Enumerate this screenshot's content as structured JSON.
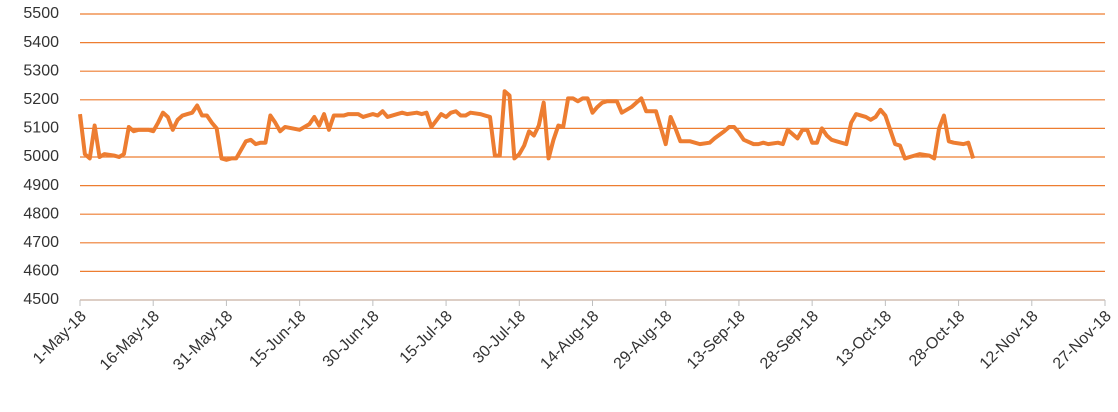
{
  "chart_data": {
    "type": "line",
    "x": [
      "2018-05-01",
      "2018-05-02",
      "2018-05-03",
      "2018-05-04",
      "2018-05-05",
      "2018-05-06",
      "2018-05-08",
      "2018-05-09",
      "2018-05-10",
      "2018-05-11",
      "2018-05-12",
      "2018-05-13",
      "2018-05-15",
      "2018-05-16",
      "2018-05-17",
      "2018-05-18",
      "2018-05-19",
      "2018-05-20",
      "2018-05-21",
      "2018-05-22",
      "2018-05-23",
      "2018-05-24",
      "2018-05-25",
      "2018-05-26",
      "2018-05-27",
      "2018-05-28",
      "2018-05-29",
      "2018-05-30",
      "2018-05-31",
      "2018-06-01",
      "2018-06-02",
      "2018-06-04",
      "2018-06-05",
      "2018-06-06",
      "2018-06-07",
      "2018-06-08",
      "2018-06-09",
      "2018-06-10",
      "2018-06-11",
      "2018-06-12",
      "2018-06-15",
      "2018-06-17",
      "2018-06-18",
      "2018-06-19",
      "2018-06-20",
      "2018-06-21",
      "2018-06-22",
      "2018-06-24",
      "2018-06-25",
      "2018-06-27",
      "2018-06-28",
      "2018-06-30",
      "2018-07-01",
      "2018-07-02",
      "2018-07-03",
      "2018-07-05",
      "2018-07-06",
      "2018-07-07",
      "2018-07-09",
      "2018-07-10",
      "2018-07-11",
      "2018-07-12",
      "2018-07-14",
      "2018-07-15",
      "2018-07-16",
      "2018-07-17",
      "2018-07-18",
      "2018-07-19",
      "2018-07-20",
      "2018-07-22",
      "2018-07-23",
      "2018-07-24",
      "2018-07-25",
      "2018-07-26",
      "2018-07-27",
      "2018-07-28",
      "2018-07-29",
      "2018-07-30",
      "2018-07-31",
      "2018-08-01",
      "2018-08-02",
      "2018-08-03",
      "2018-08-04",
      "2018-08-05",
      "2018-08-06",
      "2018-08-07",
      "2018-08-08",
      "2018-08-09",
      "2018-08-10",
      "2018-08-11",
      "2018-08-12",
      "2018-08-13",
      "2018-08-14",
      "2018-08-15",
      "2018-08-16",
      "2018-08-17",
      "2018-08-19",
      "2018-08-20",
      "2018-08-22",
      "2018-08-23",
      "2018-08-24",
      "2018-08-25",
      "2018-08-27",
      "2018-08-29",
      "2018-08-30",
      "2018-08-31",
      "2018-09-01",
      "2018-09-03",
      "2018-09-05",
      "2018-09-07",
      "2018-09-08",
      "2018-09-10",
      "2018-09-11",
      "2018-09-12",
      "2018-09-13",
      "2018-09-14",
      "2018-09-16",
      "2018-09-17",
      "2018-09-18",
      "2018-09-19",
      "2018-09-21",
      "2018-09-22",
      "2018-09-23",
      "2018-09-24",
      "2018-09-25",
      "2018-09-26",
      "2018-09-27",
      "2018-09-28",
      "2018-09-29",
      "2018-09-30",
      "2018-10-01",
      "2018-10-02",
      "2018-10-03",
      "2018-10-05",
      "2018-10-06",
      "2018-10-07",
      "2018-10-09",
      "2018-10-10",
      "2018-10-11",
      "2018-10-12",
      "2018-10-13",
      "2018-10-14",
      "2018-10-15",
      "2018-10-16",
      "2018-10-17",
      "2018-10-18",
      "2018-10-20",
      "2018-10-22",
      "2018-10-23",
      "2018-10-24",
      "2018-10-25",
      "2018-10-26",
      "2018-10-27",
      "2018-10-29",
      "2018-10-30",
      "2018-10-31"
    ],
    "series": [
      {
        "color": "#ed7d31",
        "values": [
          5150,
          5010,
          4995,
          5110,
          5000,
          5010,
          5005,
          5000,
          5010,
          5105,
          5090,
          5095,
          5095,
          5090,
          5120,
          5155,
          5140,
          5095,
          5130,
          5145,
          5150,
          5155,
          5180,
          5145,
          5145,
          5120,
          5100,
          4995,
          4990,
          4995,
          4995,
          5055,
          5060,
          5045,
          5050,
          5050,
          5145,
          5120,
          5090,
          5105,
          5095,
          5115,
          5140,
          5110,
          5150,
          5095,
          5145,
          5145,
          5150,
          5150,
          5140,
          5150,
          5145,
          5160,
          5140,
          5150,
          5155,
          5150,
          5155,
          5150,
          5155,
          5105,
          5150,
          5140,
          5155,
          5160,
          5145,
          5145,
          5155,
          5150,
          5145,
          5140,
          5005,
          5005,
          5230,
          5215,
          4995,
          5010,
          5040,
          5090,
          5075,
          5110,
          5190,
          4995,
          5060,
          5110,
          5105,
          5205,
          5205,
          5195,
          5205,
          5205,
          5155,
          5175,
          5190,
          5195,
          5195,
          5155,
          5175,
          5190,
          5205,
          5160,
          5160,
          5045,
          5140,
          5100,
          5055,
          5055,
          5045,
          5050,
          5065,
          5090,
          5105,
          5105,
          5085,
          5060,
          5045,
          5045,
          5050,
          5045,
          5050,
          5045,
          5095,
          5080,
          5065,
          5095,
          5095,
          5050,
          5050,
          5100,
          5075,
          5060,
          5055,
          5045,
          5120,
          5150,
          5140,
          5130,
          5140,
          5165,
          5145,
          5095,
          5045,
          5040,
          4995,
          5000,
          5010,
          5005,
          4995,
          5100,
          5145,
          5055,
          5050,
          5045,
          5050,
          4995
        ]
      }
    ],
    "xlim": [
      "2018-05-01",
      "2018-11-27"
    ],
    "xticks": [
      {
        "value": "2018-05-01",
        "label": "1-May-18"
      },
      {
        "value": "2018-05-16",
        "label": "16-May-18"
      },
      {
        "value": "2018-05-31",
        "label": "31-May-18"
      },
      {
        "value": "2018-06-15",
        "label": "15-Jun-18"
      },
      {
        "value": "2018-06-30",
        "label": "30-Jun-18"
      },
      {
        "value": "2018-07-15",
        "label": "15-Jul-18"
      },
      {
        "value": "2018-07-30",
        "label": "30-Jul-18"
      },
      {
        "value": "2018-08-14",
        "label": "14-Aug-18"
      },
      {
        "value": "2018-08-29",
        "label": "29-Aug-18"
      },
      {
        "value": "2018-09-13",
        "label": "13-Sep-18"
      },
      {
        "value": "2018-09-28",
        "label": "28-Sep-18"
      },
      {
        "value": "2018-10-13",
        "label": "13-Oct-18"
      },
      {
        "value": "2018-10-28",
        "label": "28-Oct-18"
      },
      {
        "value": "2018-11-12",
        "label": "12-Nov-18"
      },
      {
        "value": "2018-11-27",
        "label": "27-Nov-18"
      }
    ],
    "ylim": [
      4500,
      5500
    ],
    "yticks": [
      4500,
      4600,
      4700,
      4800,
      4900,
      5000,
      5100,
      5200,
      5300,
      5400,
      5500
    ],
    "grid": true,
    "grid_color": "#ed7d31"
  }
}
